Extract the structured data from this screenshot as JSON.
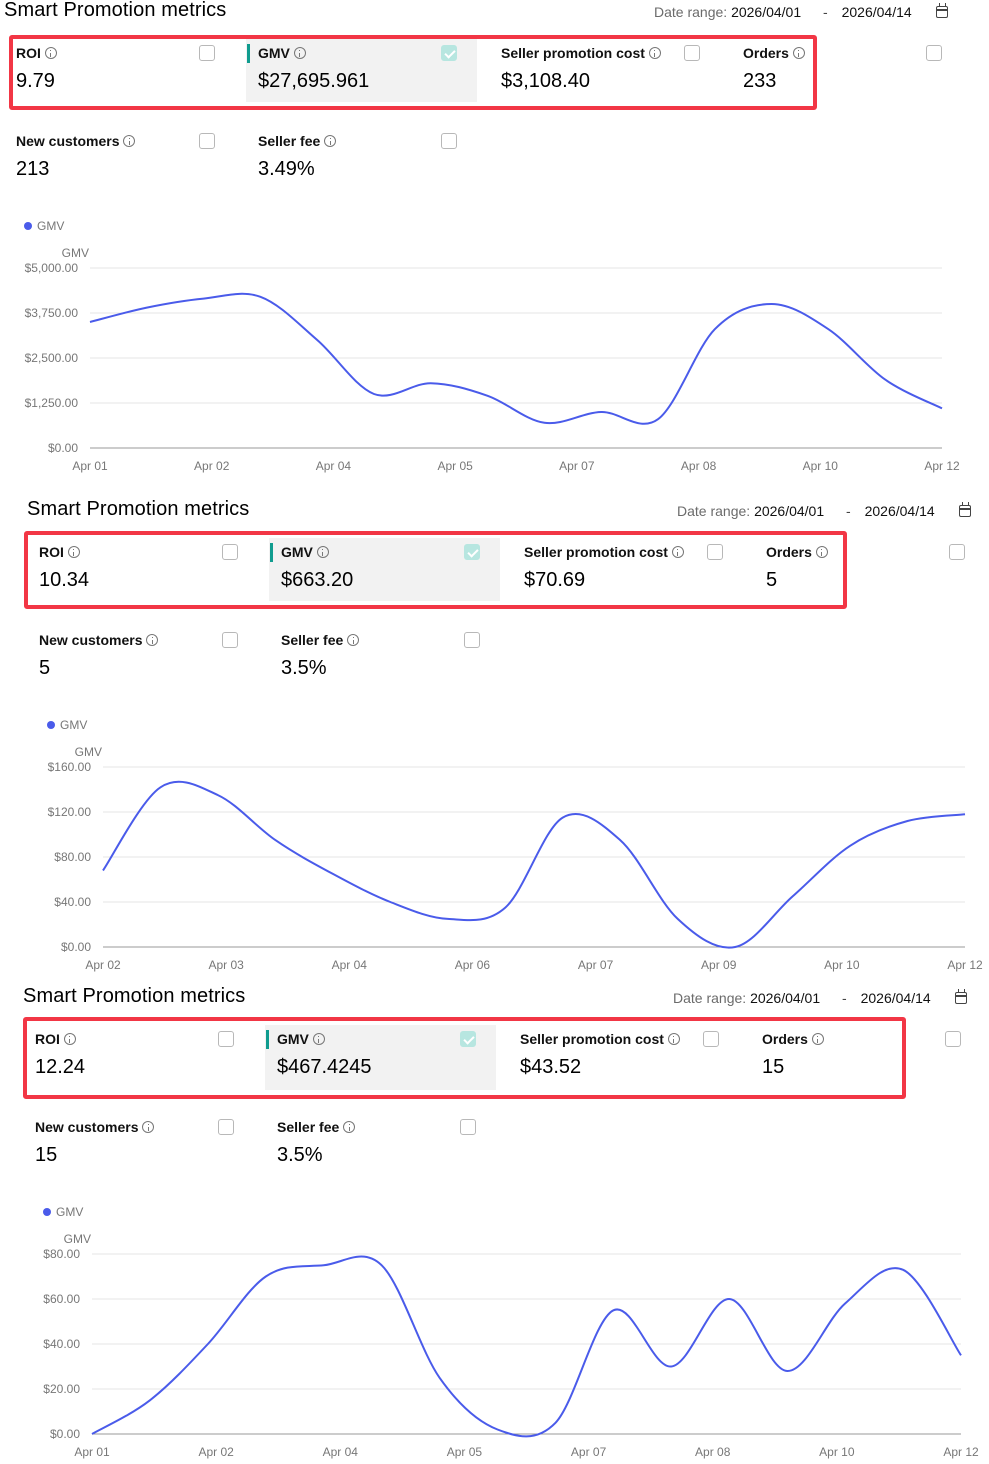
{
  "colors": {
    "accent": "#109c8f",
    "highlight": "#f23645",
    "line": "#4a5bea"
  },
  "panels": [
    {
      "title": "Smart Promotion metrics",
      "date_range": {
        "label": "Date range:",
        "start": "2026/04/01",
        "separator": "-",
        "end": "2026/04/14"
      },
      "metrics": {
        "roi": {
          "label": "ROI",
          "value": "9.79",
          "checked": false
        },
        "gmv": {
          "label": "GMV",
          "value": "$27,695.961",
          "checked": true
        },
        "seller_promotion_cost": {
          "label": "Seller promotion cost",
          "value": "$3,108.40",
          "checked": false
        },
        "orders": {
          "label": "Orders",
          "value": "233",
          "checked": false
        },
        "new_customers": {
          "label": "New customers",
          "value": "213",
          "checked": false
        },
        "seller_fee": {
          "label": "Seller fee",
          "value": "3.49%",
          "checked": false
        }
      },
      "legend": "GMV",
      "chart_data": {
        "type": "line",
        "ylabel": "GMV",
        "ylim": [
          0,
          5000
        ],
        "y_ticks": [
          "$0.00",
          "$1,250.00",
          "$2,500.00",
          "$3,750.00",
          "$5,000.00"
        ],
        "x_tick_labels": [
          "Apr 01",
          "Apr 02",
          "Apr 04",
          "Apr 05",
          "Apr 07",
          "Apr 08",
          "Apr 10",
          "Apr 12"
        ],
        "grid": true,
        "series": [
          {
            "name": "GMV",
            "values": [
              3500,
              3900,
              4150,
              4200,
              3000,
              1500,
              1800,
              1450,
              700,
              1000,
              800,
              3300,
              4000,
              3300,
              1900,
              1100
            ]
          }
        ]
      }
    },
    {
      "title": "Smart Promotion metrics",
      "date_range": {
        "label": "Date range:",
        "start": "2026/04/01",
        "separator": "-",
        "end": "2026/04/14"
      },
      "metrics": {
        "roi": {
          "label": "ROI",
          "value": "10.34",
          "checked": false
        },
        "gmv": {
          "label": "GMV",
          "value": "$663.20",
          "checked": true
        },
        "seller_promotion_cost": {
          "label": "Seller promotion cost",
          "value": "$70.69",
          "checked": false
        },
        "orders": {
          "label": "Orders",
          "value": "5",
          "checked": false
        },
        "new_customers": {
          "label": "New customers",
          "value": "5",
          "checked": false
        },
        "seller_fee": {
          "label": "Seller fee",
          "value": "3.5%",
          "checked": false
        }
      },
      "legend": "GMV",
      "chart_data": {
        "type": "line",
        "ylabel": "GMV",
        "ylim": [
          0,
          160
        ],
        "y_ticks": [
          "$0.00",
          "$40.00",
          "$80.00",
          "$120.00",
          "$160.00"
        ],
        "x_tick_labels": [
          "Apr 02",
          "Apr 03",
          "Apr 04",
          "Apr 06",
          "Apr 07",
          "Apr 09",
          "Apr 10",
          "Apr 12"
        ],
        "grid": true,
        "series": [
          {
            "name": "GMV",
            "values": [
              68,
              142,
              135,
              95,
              65,
              40,
              25,
              35,
              115,
              95,
              25,
              0,
              45,
              90,
              112,
              118
            ]
          }
        ]
      }
    },
    {
      "title": "Smart Promotion metrics",
      "date_range": {
        "label": "Date range:",
        "start": "2026/04/01",
        "separator": "-",
        "end": "2026/04/14"
      },
      "metrics": {
        "roi": {
          "label": "ROI",
          "value": "12.24",
          "checked": false
        },
        "gmv": {
          "label": "GMV",
          "value": "$467.4245",
          "checked": true
        },
        "seller_promotion_cost": {
          "label": "Seller promotion cost",
          "value": "$43.52",
          "checked": false
        },
        "orders": {
          "label": "Orders",
          "value": "15",
          "checked": false
        },
        "new_customers": {
          "label": "New customers",
          "value": "15",
          "checked": false
        },
        "seller_fee": {
          "label": "Seller fee",
          "value": "3.5%",
          "checked": false
        }
      },
      "legend": "GMV",
      "chart_data": {
        "type": "line",
        "ylabel": "GMV",
        "ylim": [
          0,
          80
        ],
        "y_ticks": [
          "$0.00",
          "$20.00",
          "$40.00",
          "$60.00",
          "$80.00"
        ],
        "x_tick_labels": [
          "Apr 01",
          "Apr 02",
          "Apr 04",
          "Apr 05",
          "Apr 07",
          "Apr 08",
          "Apr 10",
          "Apr 12"
        ],
        "grid": true,
        "series": [
          {
            "name": "GMV",
            "values": [
              0,
              15,
              40,
              70,
              75,
              75,
              25,
              2,
              5,
              55,
              30,
              60,
              28,
              58,
              73,
              35
            ]
          }
        ]
      }
    }
  ]
}
